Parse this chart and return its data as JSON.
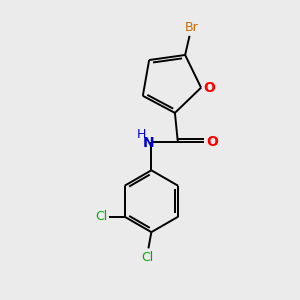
{
  "background_color": "#ebebeb",
  "atom_colors": {
    "C": "#000000",
    "N": "#0000cc",
    "O": "#ff0000",
    "Br": "#cc6600",
    "Cl": "#00aa00"
  },
  "lw": 1.4,
  "font_size": 10
}
